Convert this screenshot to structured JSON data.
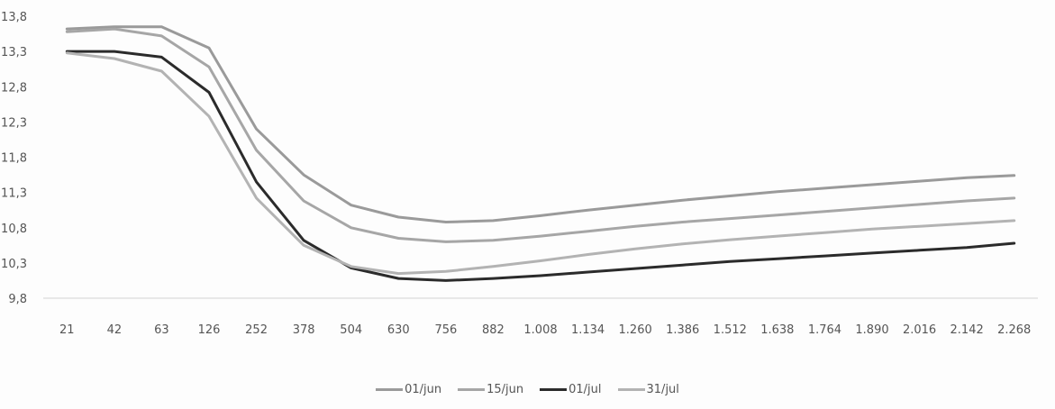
{
  "chart_data": {
    "type": "line",
    "title": "",
    "xlabel": "",
    "ylabel": "",
    "categories": [
      "21",
      "42",
      "63",
      "126",
      "252",
      "378",
      "504",
      "630",
      "756",
      "882",
      "1.008",
      "1.134",
      "1.260",
      "1.386",
      "1.512",
      "1.638",
      "1.764",
      "1.890",
      "2.016",
      "2.142",
      "2.268"
    ],
    "yticks": [
      "9,8",
      "10,3",
      "10,8",
      "11,3",
      "11,8",
      "12,3",
      "12,8",
      "13,3",
      "13,8"
    ],
    "ylim": [
      9.8,
      13.8
    ],
    "grid": false,
    "legend_position": "bottom",
    "series": [
      {
        "name": "01/jun",
        "color": "#9a9a9a",
        "values": [
          13.62,
          13.65,
          13.65,
          13.35,
          12.2,
          11.55,
          11.12,
          10.95,
          10.88,
          10.9,
          10.97,
          11.05,
          11.12,
          11.19,
          11.25,
          11.31,
          11.36,
          11.41,
          11.46,
          11.51,
          11.54
        ]
      },
      {
        "name": "15/jun",
        "color": "#a6a6a6",
        "values": [
          13.58,
          13.62,
          13.52,
          13.08,
          11.9,
          11.18,
          10.8,
          10.65,
          10.6,
          10.62,
          10.68,
          10.75,
          10.82,
          10.88,
          10.93,
          10.98,
          11.03,
          11.08,
          11.13,
          11.18,
          11.22
        ]
      },
      {
        "name": "01/jul",
        "color": "#2b2b2b",
        "values": [
          13.3,
          13.3,
          13.22,
          12.72,
          11.45,
          10.62,
          10.23,
          10.08,
          10.05,
          10.08,
          10.12,
          10.17,
          10.22,
          10.27,
          10.32,
          10.36,
          10.4,
          10.44,
          10.48,
          10.52,
          10.58
        ]
      },
      {
        "name": "31/jul",
        "color": "#b3b3b3",
        "values": [
          13.28,
          13.2,
          13.02,
          12.38,
          11.22,
          10.55,
          10.25,
          10.15,
          10.18,
          10.25,
          10.33,
          10.42,
          10.5,
          10.57,
          10.63,
          10.68,
          10.73,
          10.78,
          10.82,
          10.86,
          10.9
        ]
      }
    ]
  }
}
